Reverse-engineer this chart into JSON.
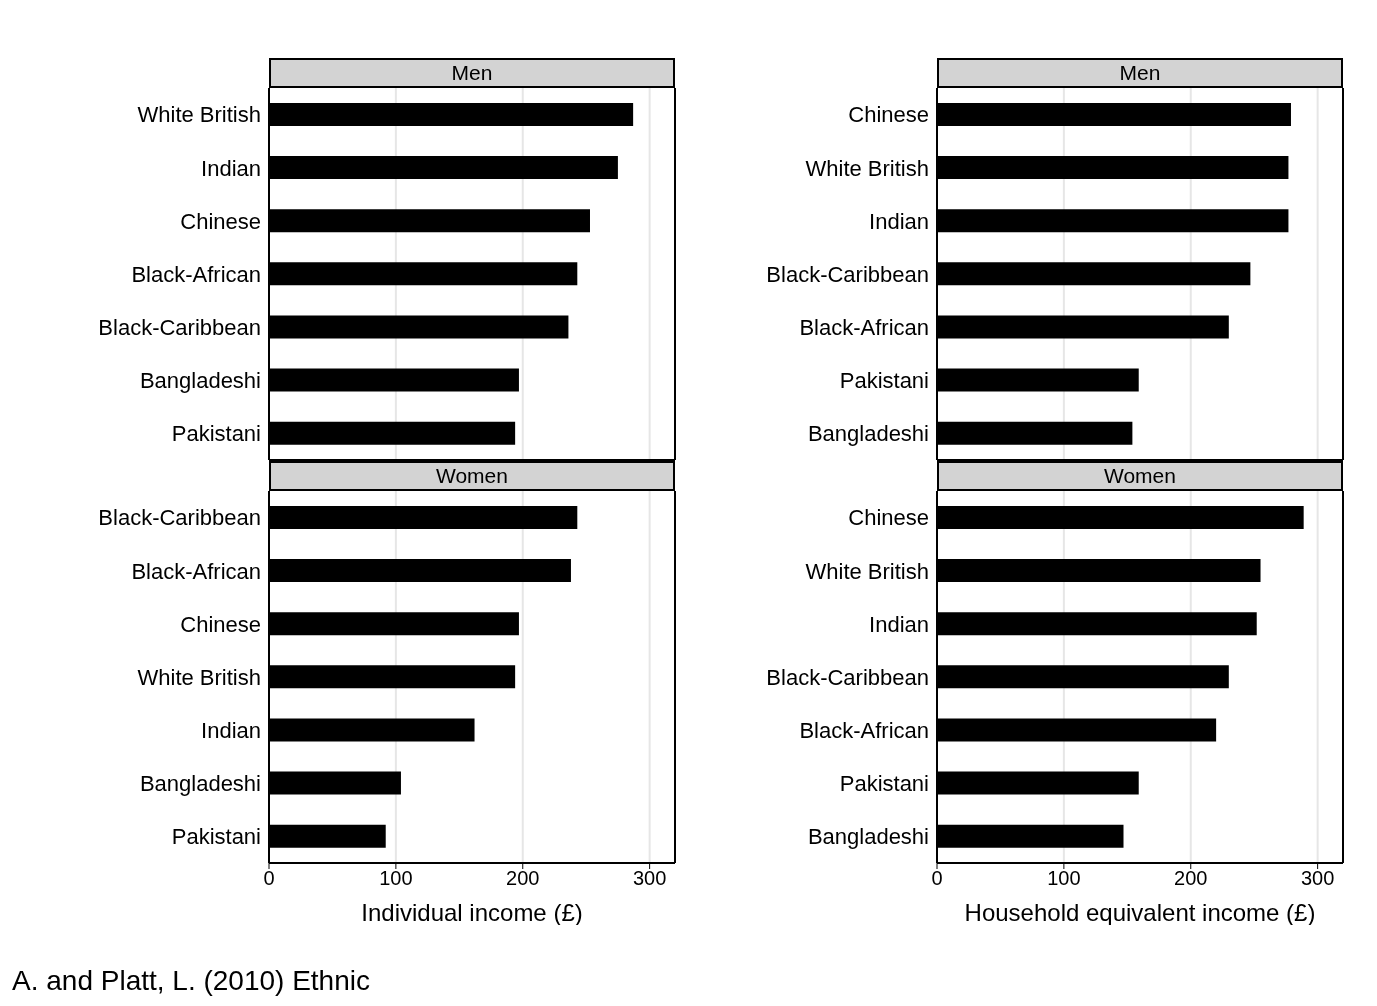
{
  "chart_data": [
    {
      "type": "bar",
      "orientation": "horizontal",
      "title": "Men",
      "categories": [
        "White British",
        "Indian",
        "Chinese",
        "Black-African",
        "Black-Caribbean",
        "Bangladeshi",
        "Pakistani"
      ],
      "values": [
        287,
        275,
        253,
        243,
        236,
        197,
        194
      ],
      "color": "#000000",
      "xlim": [
        0,
        320
      ],
      "xticks": [
        0,
        100,
        200,
        300
      ],
      "grid": "x",
      "tick_labels": "y"
    },
    {
      "type": "bar",
      "orientation": "horizontal",
      "title": "Men",
      "categories": [
        "Chinese",
        "White British",
        "Indian",
        "Black-Caribbean",
        "Black-African",
        "Pakistani",
        "Bangladeshi"
      ],
      "values": [
        279,
        277,
        277,
        247,
        230,
        159,
        154
      ],
      "color": "#000000",
      "xlim": [
        0,
        320
      ],
      "xticks": [
        0,
        100,
        200,
        300
      ],
      "grid": "x",
      "tick_labels": "y"
    },
    {
      "type": "bar",
      "orientation": "horizontal",
      "title": "Women",
      "xlabel": "Individual income (£)",
      "categories": [
        "Black-Caribbean",
        "Black-African",
        "Chinese",
        "White British",
        "Indian",
        "Bangladeshi",
        "Pakistani"
      ],
      "values": [
        243,
        238,
        197,
        194,
        162,
        104,
        92
      ],
      "color": "#000000",
      "xlim": [
        0,
        320
      ],
      "xticks": [
        0,
        100,
        200,
        300
      ],
      "grid": "x",
      "annotations": [
        "A. and Platt, L. (2010) Ethnic"
      ]
    },
    {
      "type": "bar",
      "orientation": "horizontal",
      "title": "Women",
      "xlabel": "Household equivalent income (£)",
      "categories": [
        "Chinese",
        "White British",
        "Indian",
        "Black-Caribbean",
        "Black-African",
        "Pakistani",
        "Bangladeshi"
      ],
      "values": [
        289,
        255,
        252,
        230,
        220,
        159,
        147
      ],
      "color": "#000000",
      "xlim": [
        0,
        320
      ],
      "xticks": [
        0,
        100,
        200,
        300
      ],
      "grid": "x"
    }
  ]
}
